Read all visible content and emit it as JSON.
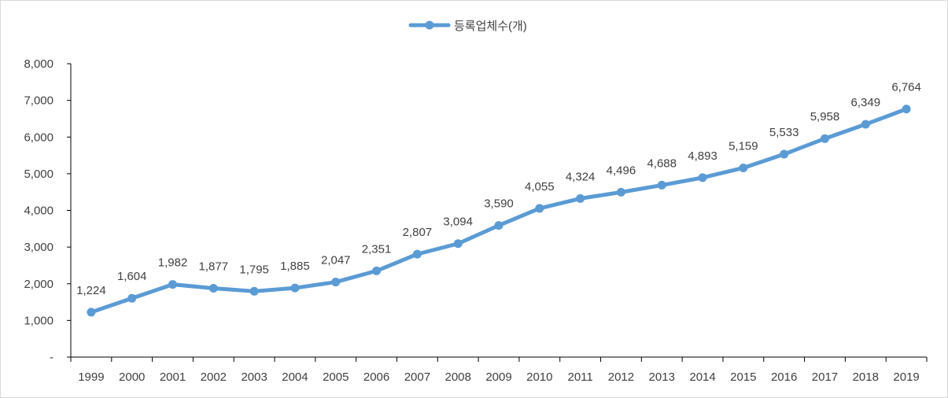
{
  "chart_data": {
    "type": "line",
    "title": "",
    "xlabel": "",
    "ylabel": "",
    "categories": [
      "1999",
      "2000",
      "2001",
      "2002",
      "2003",
      "2004",
      "2005",
      "2006",
      "2007",
      "2008",
      "2009",
      "2010",
      "2011",
      "2012",
      "2013",
      "2014",
      "2015",
      "2016",
      "2017",
      "2018",
      "2019"
    ],
    "series": [
      {
        "name": "등록업체수(개)",
        "values": [
          1224,
          1604,
          1982,
          1877,
          1795,
          1885,
          2047,
          2351,
          2807,
          3094,
          3590,
          4055,
          4324,
          4496,
          4688,
          4893,
          5159,
          5533,
          5958,
          6349,
          6764
        ],
        "color": "#5b9bd5"
      }
    ],
    "data_labels": [
      "1,224",
      "1,604",
      "1,982",
      "1,877",
      "1,795",
      "1,885",
      "2,047",
      "2,351",
      "2,807",
      "3,094",
      "3,590",
      "4,055",
      "4,324",
      "4,496",
      "4,688",
      "4,893",
      "5,159",
      "5,533",
      "5,958",
      "6,349",
      "6,764"
    ],
    "ylim": [
      0,
      8000
    ],
    "y_ticks": [
      0,
      1000,
      2000,
      3000,
      4000,
      5000,
      6000,
      7000,
      8000
    ],
    "y_tick_labels": [
      "-",
      "1,000",
      "2,000",
      "3,000",
      "4,000",
      "5,000",
      "6,000",
      "7,000",
      "8,000"
    ],
    "grid": false,
    "legend_position": "top-center",
    "axis_color": "#000000",
    "text_color": "#404040"
  }
}
